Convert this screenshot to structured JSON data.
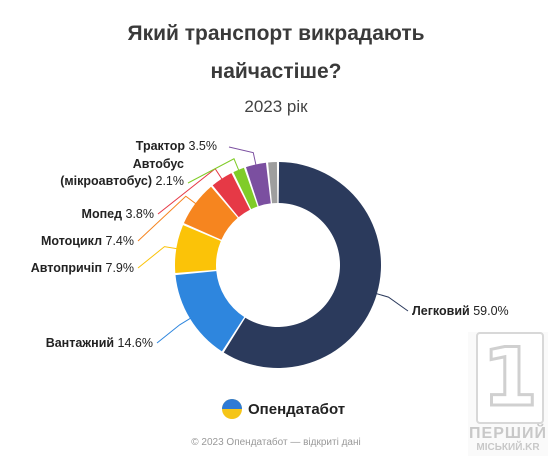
{
  "chart_data": {
    "type": "pie",
    "title_line1": "Який транспорт викрадають",
    "title_line2": "найчастіше?",
    "subtitle": "2023 рік",
    "donut": true,
    "slices": [
      {
        "label": "Легковий",
        "value": 59.0,
        "display": "59.0%",
        "color": "#2b3a5c"
      },
      {
        "label": "Вантажний",
        "value": 14.6,
        "display": "14.6%",
        "color": "#2e86de"
      },
      {
        "label": "Автопричіп",
        "value": 7.9,
        "display": "7.9%",
        "color": "#fbc308"
      },
      {
        "label": "Мотоцикл",
        "value": 7.4,
        "display": "7.4%",
        "color": "#f6851f"
      },
      {
        "label": "Мопед",
        "value": 3.8,
        "display": "3.8%",
        "color": "#e63946"
      },
      {
        "label": "Автобус (мікроавтобус)",
        "label_line1": "Автобус",
        "label_line2": "(мікроавтобус)",
        "value": 2.1,
        "display": "2.1%",
        "color": "#80cc28"
      },
      {
        "label": "Трактор",
        "value": 3.5,
        "display": "3.5%",
        "color": "#7b4fa0"
      },
      {
        "label": "",
        "value": 1.7,
        "display": "",
        "color": "#9e9e9e"
      }
    ]
  },
  "logo": {
    "text": "Опендатабот"
  },
  "footer": {
    "text": "© 2023 Опендатабот — відкриті дані"
  },
  "badge": {
    "digit": "1",
    "line1": "ПЕРШИЙ",
    "line2": "МІСЬКИЙ.KR"
  }
}
